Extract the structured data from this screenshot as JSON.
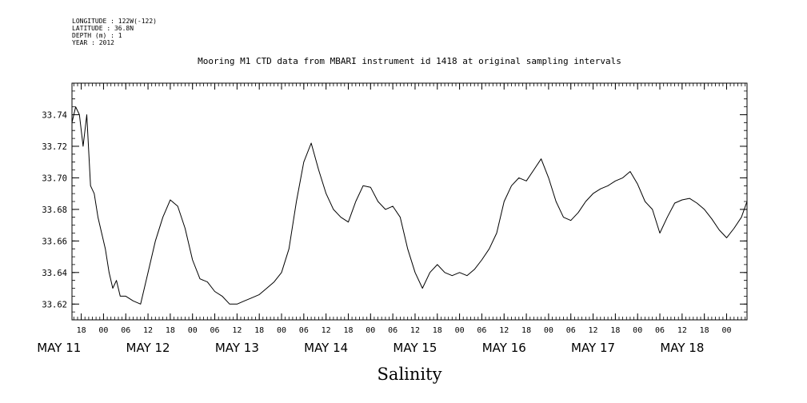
{
  "header": {
    "longitude": "LONGITUDE : 122W(-122)",
    "latitude": "LATITUDE : 36.8N",
    "depth": "DEPTH (m) : 1",
    "year": "YEAR : 2012"
  },
  "chart_data": {
    "type": "line",
    "title": "Mooring M1 CTD data from MBARI instrument id 1418 at original sampling intervals",
    "xlabel": "Salinity",
    "ylabel": "",
    "grid": false,
    "legend": "none",
    "x_unit": "hours since May 11 00:00, 2012",
    "xlim": [
      15.5,
      197.5
    ],
    "ylim": [
      33.61,
      33.76
    ],
    "y_ticks": [
      33.62,
      33.64,
      33.66,
      33.68,
      33.7,
      33.72,
      33.74
    ],
    "y_tick_labels": [
      "33.62",
      "33.64",
      "33.66",
      "33.68",
      "33.70",
      "33.72",
      "33.74"
    ],
    "hour_ticks": [
      18,
      24,
      30,
      36,
      42,
      48,
      54,
      60,
      66,
      72,
      78,
      84,
      90,
      96,
      102,
      108,
      114,
      120,
      126,
      132,
      138,
      144,
      150,
      156,
      162,
      168,
      174,
      180,
      186,
      192
    ],
    "hour_tick_labels": [
      "18",
      "00",
      "06",
      "12",
      "18",
      "00",
      "06",
      "12",
      "18",
      "00",
      "06",
      "12",
      "18",
      "00",
      "06",
      "12",
      "18",
      "00",
      "06",
      "12",
      "18",
      "00",
      "06",
      "12",
      "18",
      "00",
      "06",
      "12",
      "18",
      "00"
    ],
    "day_ticks": [
      12,
      36,
      60,
      84,
      108,
      132,
      156,
      180
    ],
    "day_labels": [
      "MAY 11",
      "MAY 12",
      "MAY 13",
      "MAY 14",
      "MAY 15",
      "MAY 16",
      "MAY 17",
      "MAY 18"
    ],
    "series": [
      {
        "color": "#000000",
        "x": [
          15.5,
          16.5,
          17.5,
          18.5,
          19.5,
          20.5,
          21.5,
          22.5,
          23.5,
          24.5,
          25.5,
          26.5,
          27.5,
          28.5,
          30,
          32,
          34,
          36,
          38,
          40,
          42,
          44,
          46,
          48,
          50,
          52,
          54,
          56,
          58,
          60,
          62,
          64,
          66,
          68,
          70,
          72,
          74,
          76,
          78,
          80,
          82,
          84,
          86,
          88,
          90,
          92,
          94,
          96,
          98,
          100,
          102,
          104,
          106,
          108,
          110,
          112,
          114,
          116,
          118,
          120,
          122,
          124,
          126,
          128,
          130,
          132,
          134,
          136,
          138,
          140,
          142,
          144,
          146,
          148,
          150,
          152,
          154,
          156,
          158,
          160,
          162,
          164,
          166,
          168,
          170,
          172,
          174,
          176,
          178,
          180,
          182,
          184,
          186,
          188,
          190,
          192,
          194,
          196,
          197.5
        ],
        "y": [
          33.735,
          33.745,
          33.74,
          33.72,
          33.74,
          33.695,
          33.69,
          33.675,
          33.665,
          33.655,
          33.64,
          33.63,
          33.635,
          33.625,
          33.625,
          33.622,
          33.62,
          33.64,
          33.66,
          33.675,
          33.686,
          33.682,
          33.668,
          33.648,
          33.636,
          33.634,
          33.628,
          33.625,
          33.62,
          33.62,
          33.622,
          33.624,
          33.626,
          33.63,
          33.634,
          33.64,
          33.655,
          33.685,
          33.71,
          33.722,
          33.705,
          33.69,
          33.68,
          33.675,
          33.672,
          33.685,
          33.695,
          33.694,
          33.685,
          33.68,
          33.682,
          33.675,
          33.655,
          33.64,
          33.63,
          33.64,
          33.645,
          33.64,
          33.638,
          33.64,
          33.638,
          33.642,
          33.648,
          33.655,
          33.665,
          33.685,
          33.695,
          33.7,
          33.698,
          33.705,
          33.712,
          33.7,
          33.685,
          33.675,
          33.673,
          33.678,
          33.685,
          33.69,
          33.693,
          33.695,
          33.698,
          33.7,
          33.704,
          33.696,
          33.685,
          33.68,
          33.665,
          33.675,
          33.684,
          33.686,
          33.687,
          33.684,
          33.68,
          33.674,
          33.667,
          33.662,
          33.668,
          33.675,
          33.685
        ]
      }
    ]
  }
}
